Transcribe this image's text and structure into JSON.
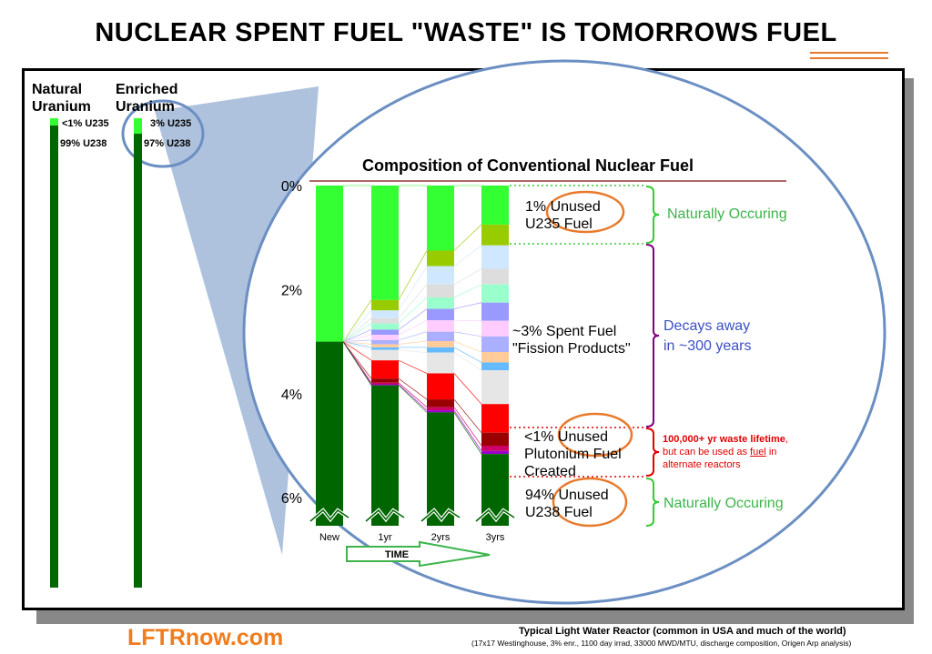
{
  "title": "NUCLEAR SPENT FUEL \"WASTE\" IS TOMORROWS FUEL",
  "title_pre": "NUCLEAR SPENT FUEL \"WASTE\" IS TOMORROWS ",
  "title_underlined": "FUEL",
  "colors": {
    "accent": "#e87a2c",
    "u235": "#33ff33",
    "u238": "#006600",
    "naturally_occurring": "#3cb44b",
    "decays": "#3b4fc4",
    "waste": "#e00000",
    "bracket_purple": "#800080",
    "time_arrow": "#3cb44b",
    "ellipse": "#4a6fa5"
  },
  "uranium_columns": {
    "natural": {
      "label": "Natural Uranium",
      "u235": "<1% U235",
      "u238": "99% U238"
    },
    "enriched": {
      "label": "Enriched Uranium",
      "u235": "3% U235",
      "u238": "97% U238"
    }
  },
  "chart_data": {
    "type": "bar",
    "stacked": true,
    "title": "Composition of Conventional Nuclear Fuel",
    "categories": [
      "New",
      "1yr",
      "2yrs",
      "3yrs"
    ],
    "y_ticks": [
      "0%",
      "2%",
      "4%",
      "6%"
    ],
    "ylim": [
      0,
      6.5
    ],
    "y_inverted": true,
    "x_axis_label": "TIME",
    "axis_break": true,
    "series": [
      {
        "color": "#33ff33",
        "values": [
          3.0,
          2.2,
          1.25,
          0.75
        ]
      },
      {
        "color": "#99cc00",
        "values": [
          0,
          0.2,
          0.3,
          0.4
        ]
      },
      {
        "color": "#cfe8ff",
        "values": [
          0,
          0.15,
          0.35,
          0.45
        ]
      },
      {
        "color": "#dddddd",
        "values": [
          0,
          0.1,
          0.25,
          0.3
        ]
      },
      {
        "color": "#99ffcc",
        "values": [
          0,
          0.12,
          0.22,
          0.35
        ]
      },
      {
        "color": "#9999ff",
        "values": [
          0,
          0.1,
          0.22,
          0.35
        ]
      },
      {
        "color": "#ffccff",
        "values": [
          0,
          0.1,
          0.22,
          0.3
        ]
      },
      {
        "color": "#aab0ff",
        "values": [
          0,
          0.08,
          0.18,
          0.3
        ]
      },
      {
        "color": "#ffcc99",
        "values": [
          0,
          0.06,
          0.12,
          0.2
        ]
      },
      {
        "color": "#66bbff",
        "values": [
          0,
          0.05,
          0.1,
          0.15
        ]
      },
      {
        "color": "#e6e6e6",
        "values": [
          0,
          0.2,
          0.4,
          0.65
        ]
      },
      {
        "color": "#ff0000",
        "values": [
          0,
          0.35,
          0.5,
          0.55
        ]
      },
      {
        "color": "#990000",
        "values": [
          0,
          0.08,
          0.15,
          0.25
        ]
      },
      {
        "color": "#cc0066",
        "values": [
          0,
          0.03,
          0.06,
          0.1
        ]
      },
      {
        "color": "#9900cc",
        "values": [
          0,
          0.02,
          0.04,
          0.06
        ]
      },
      {
        "color": "#006600",
        "values": [
          3.5,
          2.64,
          1.94,
          1.34
        ]
      }
    ],
    "annotations": {
      "unused_u235": "1% Unused\nU235 Fuel",
      "spent_fuel": "~3% Spent Fuel\n\"Fission Products\"",
      "plutonium": "<1% Unused\nPlutonium Fuel\nCreated",
      "unused_u238": "94% Unused\nU238 Fuel"
    },
    "side_labels": {
      "naturally_occurring_top": "Naturally Occuring",
      "decays": "Decays away\nin ~300 years",
      "waste_bold": "100,000+ yr waste lifetime",
      "waste_rest_a": ",",
      "waste_line2_pre": "but can be used as ",
      "waste_line2_u": "fuel",
      "waste_line2_post": " in",
      "waste_line3": "alternate reactors",
      "naturally_occurring_bottom": "Naturally Occuring"
    }
  },
  "footer": {
    "brand": "LFTRnow.com",
    "source_title": "Typical Light Water Reactor (common in USA and much of the world)",
    "source_detail": "(17x17 Westinghouse, 3% enr., 1100 day irrad, 33000 MWD/MTU, discharge composition, Origen Arp analysis)"
  }
}
